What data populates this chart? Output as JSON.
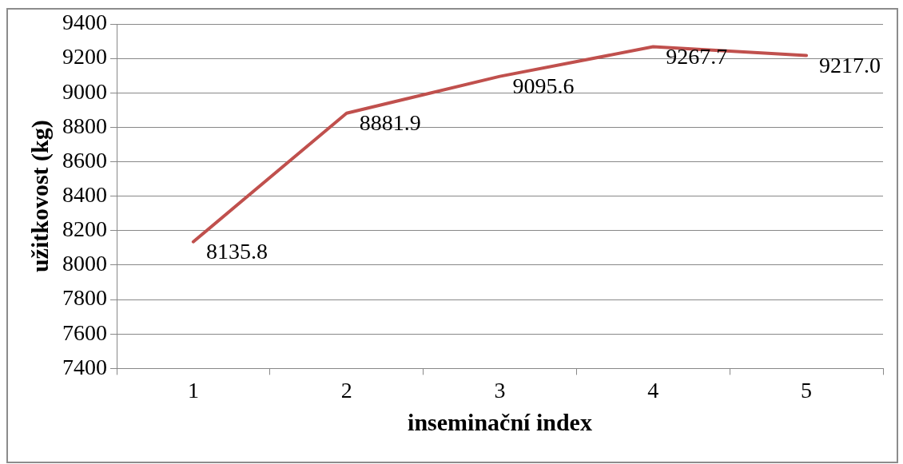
{
  "chart_data": {
    "type": "line",
    "xlabel": "inseminační index",
    "ylabel": "užitkovost (kg)",
    "categories": [
      "1",
      "2",
      "3",
      "4",
      "5"
    ],
    "series": [
      {
        "color": "#c0504d",
        "values": [
          8135.8,
          8881.9,
          9095.6,
          9267.7,
          9217.0
        ],
        "value_labels": [
          "8135.8",
          "8881.9",
          "9095.6",
          "9267.7",
          "9217.0"
        ]
      }
    ],
    "ylim": [
      7400,
      9400
    ],
    "yticks": [
      7400,
      7600,
      7800,
      8000,
      8200,
      8400,
      8600,
      8800,
      9000,
      9200,
      9400
    ],
    "grid": "y",
    "legend": false,
    "marker": "none",
    "line_style": "solid"
  }
}
